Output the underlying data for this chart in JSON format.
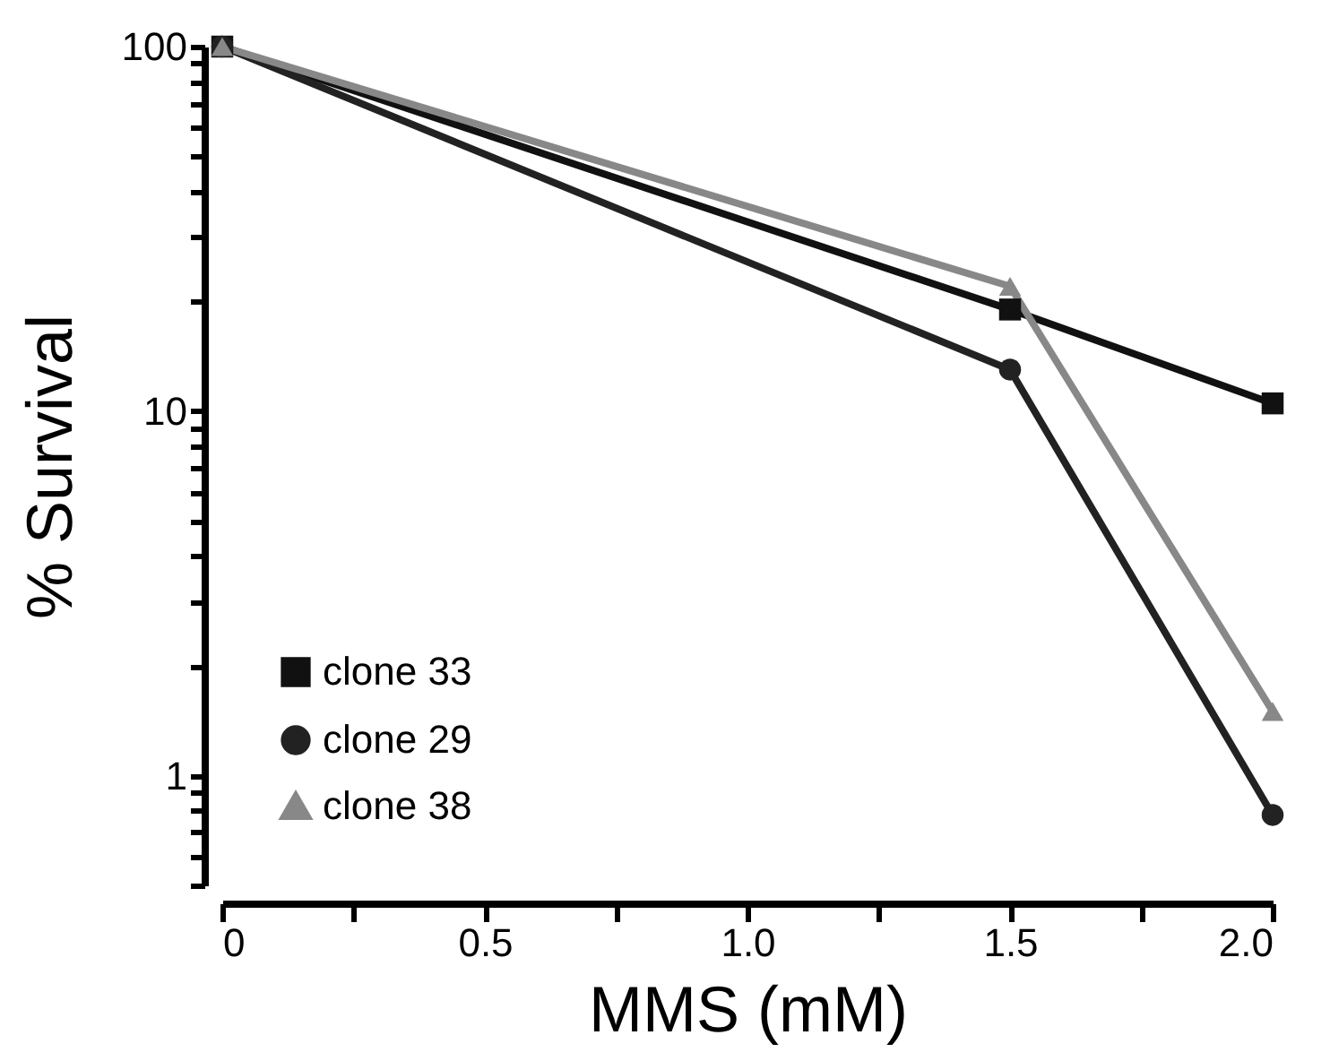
{
  "chart_data": {
    "type": "line",
    "xlabel": "MMS (mM)",
    "ylabel": "% Survival",
    "log": "y",
    "x": [
      0,
      1.5,
      2.0
    ],
    "series": [
      {
        "name": "clone 33",
        "color": "#111111",
        "marker": "square",
        "values": [
          100,
          19,
          10.5
        ]
      },
      {
        "name": "clone 29",
        "color": "#222222",
        "marker": "circle",
        "values": [
          100,
          13,
          0.78
        ]
      },
      {
        "name": "clone 38",
        "color": "#888888",
        "marker": "triangle",
        "values": [
          100,
          22,
          1.5
        ]
      }
    ],
    "xlim": [
      0,
      2.0
    ],
    "xticks": [
      0,
      {
        "value": 0.25,
        "label": null
      },
      0.5,
      {
        "value": 0.75,
        "label": null
      },
      {
        "value": 1.0,
        "label": "1.0"
      },
      {
        "value": 1.25,
        "label": null
      },
      1.5,
      {
        "value": 1.75,
        "label": null
      },
      {
        "value": 2.0,
        "label": "2.0"
      }
    ],
    "ylim": [
      0.5,
      100
    ],
    "yticks": [
      {
        "value": 0.5,
        "label": null
      },
      {
        "value": 0.6,
        "label": null
      },
      {
        "value": 0.7,
        "label": null
      },
      {
        "value": 0.8,
        "label": null
      },
      {
        "value": 0.9,
        "label": null
      },
      1,
      {
        "value": 2,
        "label": null
      },
      {
        "value": 3,
        "label": null
      },
      {
        "value": 4,
        "label": null
      },
      {
        "value": 5,
        "label": null
      },
      {
        "value": 6,
        "label": null
      },
      {
        "value": 7,
        "label": null
      },
      {
        "value": 8,
        "label": null
      },
      {
        "value": 9,
        "label": null
      },
      10,
      {
        "value": 20,
        "label": null
      },
      {
        "value": 30,
        "label": null
      },
      {
        "value": 40,
        "label": null
      },
      {
        "value": 50,
        "label": null
      },
      {
        "value": 60,
        "label": null
      },
      {
        "value": 70,
        "label": null
      },
      {
        "value": 80,
        "label": null
      },
      {
        "value": 90,
        "label": null
      },
      100
    ],
    "grid": false,
    "legend": "bottom left",
    "line_style": "solid"
  }
}
